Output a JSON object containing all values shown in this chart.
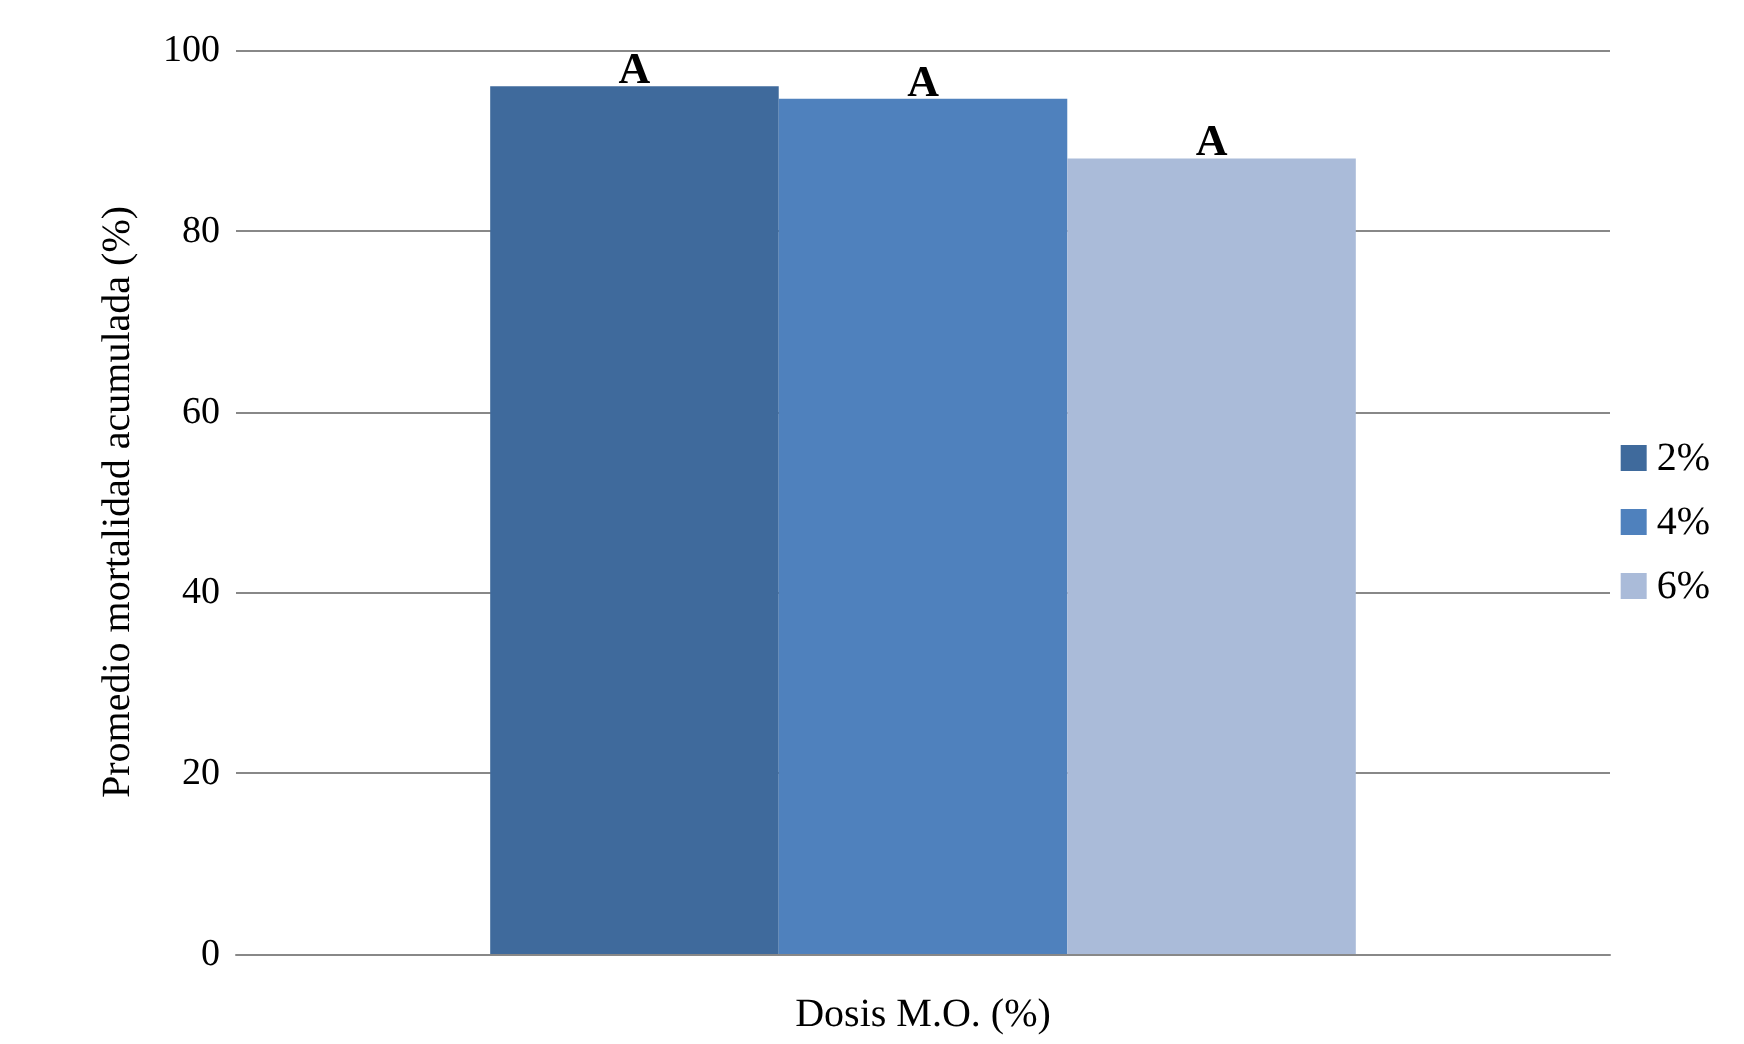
{
  "chart_data": {
    "type": "bar",
    "xlabel": "Dosis M.O. (%)",
    "ylabel": "Promedio mortalidad acumulada (%)",
    "categories": [
      null
    ],
    "series": [
      {
        "name": "2%",
        "color": "#3f6a9c",
        "values": [
          96
        ],
        "value_labels": [
          "A"
        ]
      },
      {
        "name": "4%",
        "color": "#4f81bd",
        "values": [
          94.6
        ],
        "value_labels": [
          "A"
        ]
      },
      {
        "name": "6%",
        "color": "#aabbd9",
        "values": [
          88
        ],
        "value_labels": [
          "A"
        ]
      }
    ],
    "ylim": [
      0,
      100
    ],
    "yticks": [
      0,
      20,
      40,
      60,
      80,
      100
    ],
    "grid": "y",
    "legend": "right"
  }
}
